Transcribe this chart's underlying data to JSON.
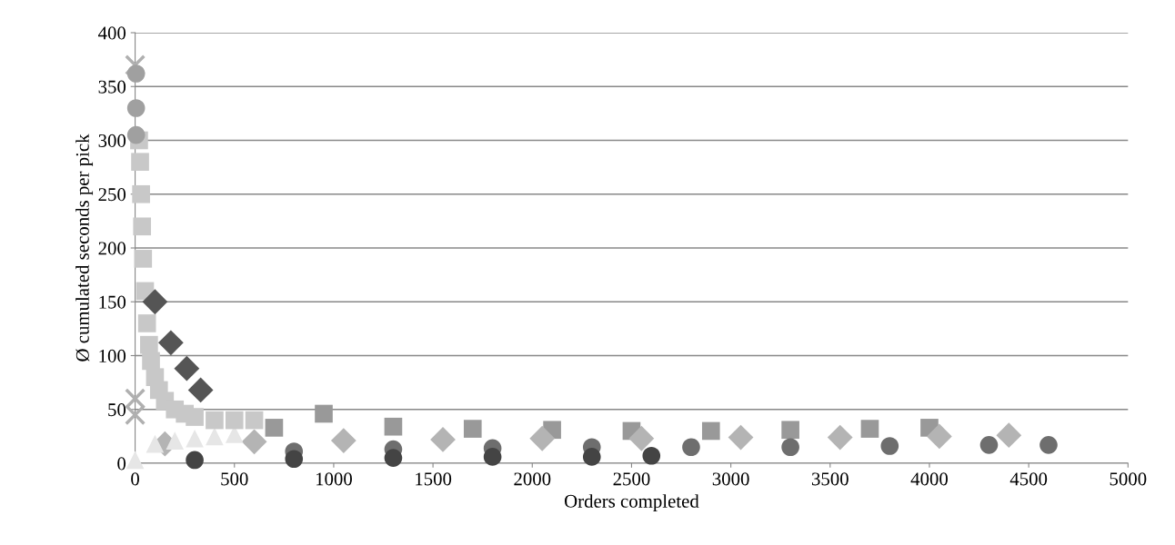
{
  "chart_data": {
    "type": "scatter",
    "xlabel": "Orders completed",
    "ylabel": "Ø cumulated seconds per pick",
    "xlim": [
      0,
      5000
    ],
    "xticks": [
      0,
      500,
      1000,
      1500,
      2000,
      2500,
      3000,
      3500,
      4000,
      4500,
      5000
    ],
    "ylim": [
      0,
      400
    ],
    "yticks": [
      0,
      50,
      100,
      150,
      200,
      250,
      300,
      350,
      400
    ],
    "grid": "y",
    "legend": false,
    "series": [
      {
        "color": "#999999",
        "marker": "square",
        "x": [
          700,
          950,
          1300,
          1700,
          2100,
          2500,
          2900,
          3300,
          3700,
          4000
        ],
        "values": [
          33,
          46,
          34,
          32,
          31,
          30,
          30,
          31,
          32,
          33
        ]
      },
      {
        "color": "#6e6e6e",
        "marker": "circle",
        "x": [
          800,
          1300,
          1800,
          2300,
          2800,
          3300,
          3800,
          4300,
          4600
        ],
        "values": [
          11,
          13,
          14,
          15,
          15,
          15,
          16,
          17,
          17
        ]
      },
      {
        "color": "#444444",
        "marker": "circle",
        "x": [
          300,
          800,
          1300,
          1800,
          2300,
          2600
        ],
        "values": [
          3,
          4,
          5,
          6,
          6,
          7
        ]
      },
      {
        "color": "#b4b4b4",
        "marker": "diamond",
        "x": [
          150,
          600,
          1050,
          1550,
          2050,
          2550,
          3050,
          3550,
          4050,
          4400
        ],
        "values": [
          18,
          20,
          21,
          22,
          23,
          23,
          24,
          24,
          25,
          26
        ]
      },
      {
        "color": "#e6e6e6",
        "marker": "triangle",
        "x": [
          0,
          100,
          200,
          300,
          400,
          500
        ],
        "values": [
          3,
          18,
          21,
          23,
          25,
          27
        ]
      },
      {
        "color": "#b0b0b0",
        "marker": "cross",
        "x": [
          0,
          0,
          0
        ],
        "values": [
          370,
          60,
          45
        ]
      },
      {
        "color": "#c8c8c8",
        "marker": "square",
        "x": [
          20,
          25,
          30,
          35,
          40,
          50,
          60,
          70,
          80,
          100,
          120,
          150,
          200,
          250,
          300,
          400,
          500,
          600
        ],
        "values": [
          300,
          280,
          250,
          220,
          190,
          160,
          130,
          110,
          95,
          80,
          68,
          58,
          50,
          46,
          43,
          40,
          40,
          40
        ]
      },
      {
        "color": "#a0a0a0",
        "marker": "circle",
        "x": [
          5,
          5,
          5
        ],
        "values": [
          362,
          330,
          305
        ]
      },
      {
        "color": "#555555",
        "marker": "diamond",
        "x": [
          100,
          180,
          260,
          330
        ],
        "values": [
          150,
          112,
          88,
          68
        ]
      }
    ]
  }
}
